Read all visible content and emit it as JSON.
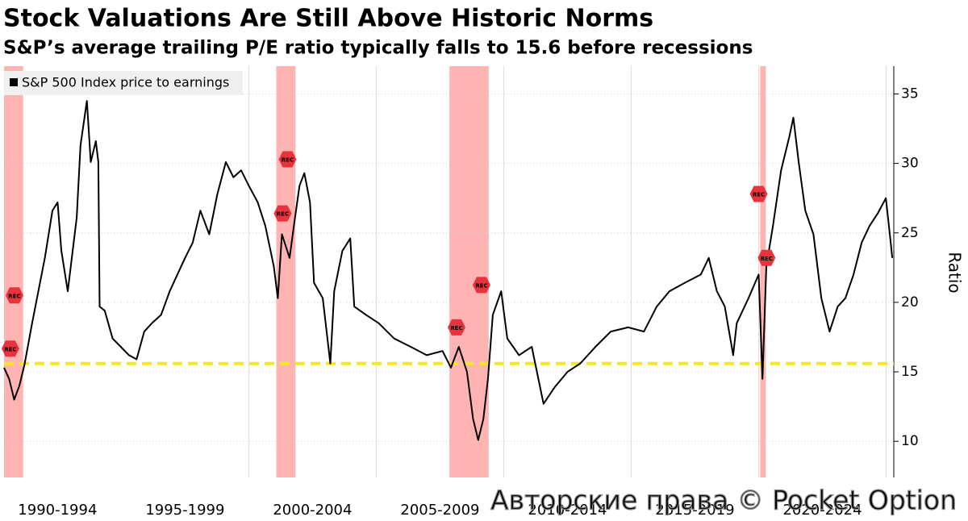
{
  "chart_data": {
    "type": "line",
    "title": "Stock Valuations Are Still Above Historic Norms",
    "subtitle": "S&P’s average trailing P/E ratio typically falls to 15.6 before recessions",
    "y_axis_label": "Ratio",
    "watermark": "Авторские права © Pocket Option",
    "x": [
      1990.4,
      1990.6,
      1990.8,
      1991.0,
      1991.2,
      1991.5,
      1992.0,
      1992.3,
      1992.5,
      1992.65,
      1992.9,
      1993.25,
      1993.4,
      1993.65,
      1993.8,
      1994.0,
      1994.1,
      1994.15,
      1994.35,
      1994.66,
      1994.98,
      1995.3,
      1995.6,
      1995.9,
      1996.2,
      1996.56,
      1996.9,
      1997.2,
      1997.5,
      1997.8,
      1998.1,
      1998.45,
      1998.77,
      1999.1,
      1999.4,
      1999.7,
      2000.0,
      2000.35,
      2000.65,
      2000.98,
      2001.14,
      2001.3,
      2001.6,
      2001.77,
      2001.99,
      2002.18,
      2002.4,
      2002.56,
      2002.9,
      2003.2,
      2003.35,
      2003.67,
      2003.98,
      2004.14,
      2004.6,
      2005.1,
      2005.7,
      2006.35,
      2006.98,
      2007.6,
      2007.93,
      2008.24,
      2008.56,
      2008.8,
      2009.0,
      2009.2,
      2009.38,
      2009.57,
      2009.9,
      2010.14,
      2010.6,
      2011.1,
      2011.56,
      2012.0,
      2012.5,
      2013.0,
      2013.6,
      2014.2,
      2014.88,
      2015.5,
      2016.0,
      2016.5,
      2017.1,
      2017.73,
      2018.04,
      2018.36,
      2018.67,
      2019.0,
      2019.14,
      2019.6,
      2020.0,
      2020.15,
      2020.3,
      2020.56,
      2020.88,
      2021.2,
      2021.36,
      2021.57,
      2021.83,
      2022.15,
      2022.46,
      2022.78,
      2023.1,
      2023.4,
      2023.72,
      2024.04,
      2024.35,
      2024.67,
      2024.99,
      2025.18,
      2025.24
    ],
    "series": [
      {
        "name": "S&P 500 Index price to earnings",
        "color": "#000000",
        "values": [
          15.3,
          14.5,
          13.0,
          14.0,
          15.5,
          18.5,
          23.2,
          26.6,
          27.2,
          23.7,
          20.8,
          26.1,
          31.3,
          34.5,
          30.1,
          31.6,
          30.1,
          19.7,
          19.4,
          17.4,
          16.8,
          16.2,
          15.9,
          17.9,
          18.5,
          19.1,
          20.8,
          22.0,
          23.2,
          24.3,
          26.6,
          24.9,
          27.8,
          30.1,
          29.0,
          29.5,
          28.4,
          27.2,
          25.5,
          22.6,
          20.3,
          24.9,
          23.2,
          25.5,
          28.4,
          29.3,
          27.2,
          21.4,
          20.3,
          15.6,
          20.8,
          23.7,
          24.6,
          19.7,
          19.1,
          18.5,
          17.4,
          16.8,
          16.2,
          16.5,
          15.3,
          16.8,
          15.0,
          11.6,
          10.1,
          11.6,
          14.5,
          19.1,
          20.8,
          17.4,
          16.2,
          16.8,
          12.7,
          13.9,
          15.0,
          15.6,
          16.8,
          17.9,
          18.2,
          17.9,
          19.7,
          20.8,
          21.4,
          22.0,
          23.2,
          20.8,
          19.7,
          16.2,
          18.5,
          20.3,
          22.0,
          14.5,
          22.6,
          25.5,
          29.5,
          31.9,
          33.3,
          30.1,
          26.6,
          24.9,
          20.3,
          17.9,
          19.7,
          20.3,
          22.0,
          24.3,
          25.5,
          26.4,
          27.5,
          24.3,
          23.2
        ]
      }
    ],
    "xlim": [
      1990.4,
      2025.3
    ],
    "xticks": [
      {
        "value": 1992.5,
        "label": "1990-1994"
      },
      {
        "value": 1997.5,
        "label": "1995-1999"
      },
      {
        "value": 2002.5,
        "label": "2000-2004"
      },
      {
        "value": 2007.5,
        "label": "2005-2009"
      },
      {
        "value": 2012.5,
        "label": "2010-2014"
      },
      {
        "value": 2017.5,
        "label": "2015-2019"
      },
      {
        "value": 2022.5,
        "label": "2020-2024"
      }
    ],
    "xgrid": [
      2000,
      2005,
      2010,
      2015,
      2020,
      2025
    ],
    "ylim": [
      7.4,
      37
    ],
    "yticks": [
      10,
      15,
      20,
      25,
      30,
      35
    ],
    "grid": true,
    "reference_line": 15.6,
    "reference_color": "#f5e91e",
    "recessions": [
      [
        1990.4,
        1991.15
      ],
      [
        2001.08,
        2001.83
      ],
      [
        2007.87,
        2009.41
      ],
      [
        2020.06,
        2020.28
      ]
    ],
    "recession_color": "#ffb3b3",
    "annotations": [
      {
        "label": "REC",
        "x": 1990.81,
        "y": 20.5
      },
      {
        "label": "REC",
        "x": 1990.65,
        "y": 16.67
      },
      {
        "label": "REC",
        "x": 2001.52,
        "y": 30.3
      },
      {
        "label": "REC",
        "x": 2001.33,
        "y": 26.4
      },
      {
        "label": "REC",
        "x": 2008.15,
        "y": 18.2
      },
      {
        "label": "REC",
        "x": 2009.13,
        "y": 21.25
      },
      {
        "label": "REC",
        "x": 2020.0,
        "y": 27.8
      },
      {
        "label": "REC",
        "x": 2020.31,
        "y": 23.2
      }
    ],
    "legend": "top-left"
  }
}
